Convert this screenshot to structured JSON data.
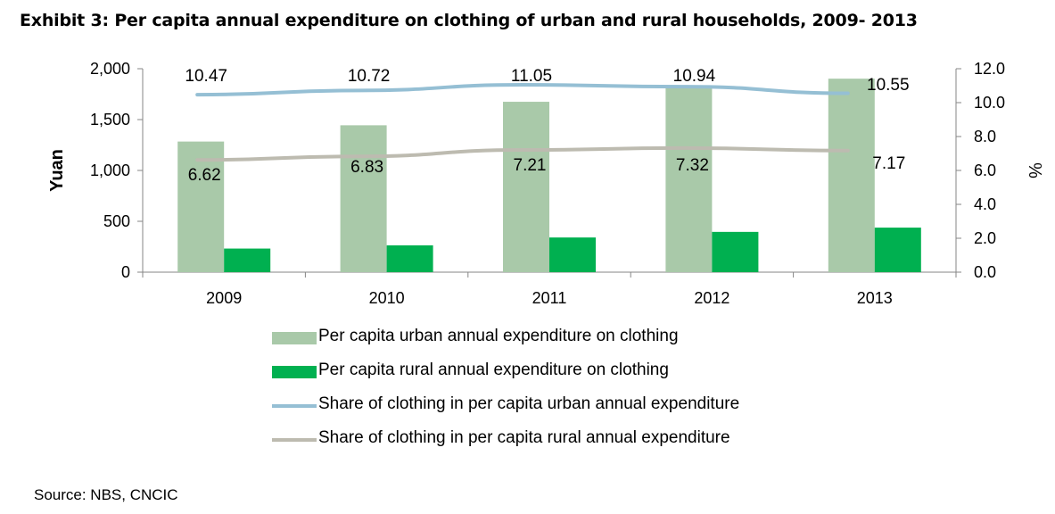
{
  "title": "Exhibit 3: Per capita annual expenditure on clothing of urban and rural households, 2009- 2013",
  "source": "Source: NBS, CNCIC",
  "colors": {
    "urban_bar": "#a9c9a9",
    "rural_bar": "#00b050",
    "urban_line": "#95bfd4",
    "rural_line": "#bdbbb0",
    "axis": "#868686"
  },
  "chart_data": {
    "type": "bar",
    "categories": [
      "2009",
      "2010",
      "2011",
      "2012",
      "2013"
    ],
    "left_axis": {
      "label": "Yuan",
      "min": 0,
      "max": 2000,
      "ticks": [
        "0",
        "500",
        "1,000",
        "1,500",
        "2,000"
      ],
      "tick_values": [
        0,
        500,
        1000,
        1500,
        2000
      ]
    },
    "right_axis": {
      "label": "%",
      "min": 0,
      "max": 12,
      "ticks": [
        "0.0",
        "2.0",
        "4.0",
        "6.0",
        "8.0",
        "10.0",
        "12.0"
      ],
      "tick_values": [
        0,
        2,
        4,
        6,
        8,
        10,
        12
      ]
    },
    "series": [
      {
        "name": "Per capita urban annual expenditure on clothing",
        "kind": "bar",
        "axis": "left",
        "color": "#a9c9a9",
        "values": [
          1284,
          1444,
          1675,
          1823,
          1902
        ]
      },
      {
        "name": "Per capita rural annual expenditure on clothing",
        "kind": "bar",
        "axis": "left",
        "color": "#00b050",
        "values": [
          232,
          264,
          341,
          396,
          438
        ]
      },
      {
        "name": "Share of clothing in per capita urban annual expenditure",
        "kind": "line",
        "axis": "right",
        "color": "#95bfd4",
        "values": [
          10.47,
          10.72,
          11.05,
          10.94,
          10.55
        ],
        "labels": [
          "10.47",
          "10.72",
          "11.05",
          "10.94",
          "10.55"
        ]
      },
      {
        "name": "Share of clothing in per capita rural annual  expenditure",
        "kind": "line",
        "axis": "right",
        "color": "#bdbbb0",
        "values": [
          6.62,
          6.83,
          7.21,
          7.32,
          7.17
        ],
        "labels": [
          "6.62",
          "6.83",
          "7.21",
          "7.32",
          "7.17"
        ]
      }
    ],
    "grid": false,
    "legend": "bottom"
  }
}
